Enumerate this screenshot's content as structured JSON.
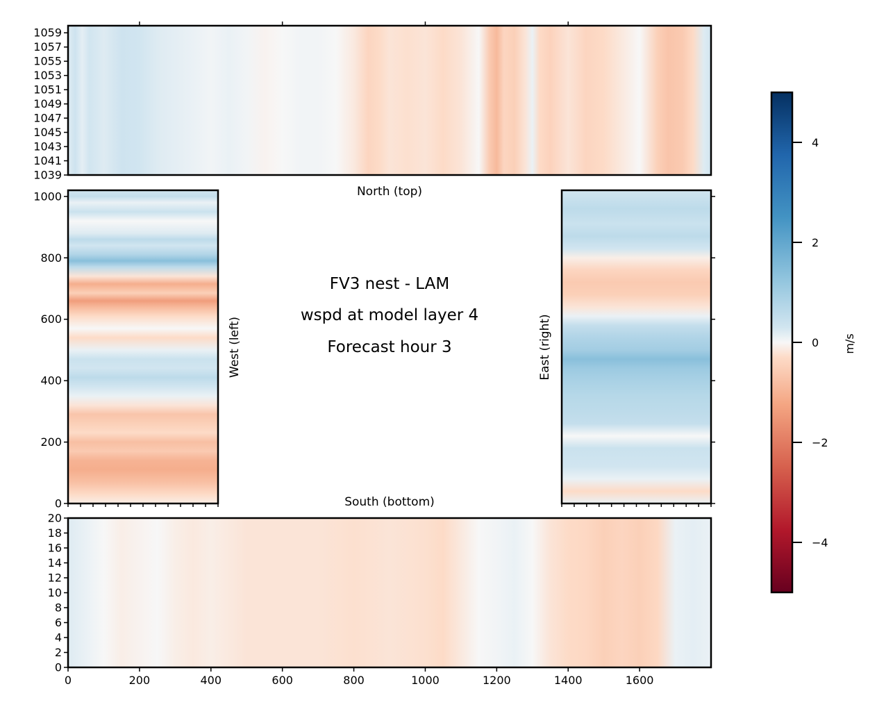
{
  "chart_data": {
    "type": "heatmap",
    "title_lines": [
      "FV3 nest - LAM",
      "wspd at model layer 4",
      "Forecast hour 3"
    ],
    "colormap": {
      "name": "RdBu",
      "range": [
        -5,
        5
      ],
      "ticks": [
        -4,
        -2,
        0,
        2,
        4
      ],
      "tick_labels": [
        "−4",
        "−2",
        "0",
        "2",
        "4"
      ],
      "label": "m/s",
      "stops": [
        {
          "v": -5,
          "c": "#67001f"
        },
        {
          "v": -3.75,
          "c": "#b2182b"
        },
        {
          "v": -2.5,
          "c": "#d6604d"
        },
        {
          "v": -1.25,
          "c": "#f4a582"
        },
        {
          "v": -0.3,
          "c": "#fddbc7"
        },
        {
          "v": 0,
          "c": "#f7f7f7"
        },
        {
          "v": 0.3,
          "c": "#d1e5f0"
        },
        {
          "v": 1.25,
          "c": "#92c5de"
        },
        {
          "v": 2.5,
          "c": "#4393c3"
        },
        {
          "v": 3.75,
          "c": "#2166ac"
        },
        {
          "v": 5,
          "c": "#053061"
        }
      ]
    },
    "panels": {
      "north": {
        "label": "North (top)",
        "xlim": [
          0,
          1800
        ],
        "ylim": [
          1039,
          1060
        ],
        "ytick_labels": [
          "1039",
          "1041",
          "1043",
          "1045",
          "1047",
          "1049",
          "1051",
          "1053",
          "1055",
          "1057",
          "1059"
        ],
        "profile": [
          [
            0,
            0.2
          ],
          [
            20,
            0.35
          ],
          [
            40,
            0.15
          ],
          [
            60,
            0.3
          ],
          [
            100,
            0.2
          ],
          [
            150,
            0.35
          ],
          [
            200,
            0.3
          ],
          [
            250,
            0.2
          ],
          [
            300,
            0.15
          ],
          [
            350,
            0.1
          ],
          [
            400,
            0.05
          ],
          [
            450,
            0.1
          ],
          [
            500,
            0.05
          ],
          [
            550,
            -0.05
          ],
          [
            600,
            0
          ],
          [
            650,
            0.05
          ],
          [
            700,
            0.05
          ],
          [
            750,
            0
          ],
          [
            800,
            -0.15
          ],
          [
            840,
            -0.4
          ],
          [
            870,
            -0.3
          ],
          [
            900,
            -0.2
          ],
          [
            950,
            -0.25
          ],
          [
            1000,
            -0.2
          ],
          [
            1050,
            -0.3
          ],
          [
            1100,
            -0.2
          ],
          [
            1150,
            0
          ],
          [
            1180,
            -0.6
          ],
          [
            1200,
            -0.9
          ],
          [
            1220,
            -0.4
          ],
          [
            1250,
            -0.5
          ],
          [
            1280,
            -0.2
          ],
          [
            1300,
            0.1
          ],
          [
            1320,
            -0.3
          ],
          [
            1350,
            -0.45
          ],
          [
            1400,
            -0.2
          ],
          [
            1450,
            -0.4
          ],
          [
            1500,
            -0.3
          ],
          [
            1550,
            -0.15
          ],
          [
            1600,
            0
          ],
          [
            1650,
            -0.5
          ],
          [
            1680,
            -0.7
          ],
          [
            1720,
            -0.6
          ],
          [
            1750,
            -0.3
          ],
          [
            1780,
            0.2
          ],
          [
            1800,
            0.3
          ]
        ]
      },
      "south": {
        "label": "South (bottom)",
        "xlim": [
          0,
          1800
        ],
        "ylim": [
          0,
          20
        ],
        "yticks": [
          0,
          2,
          4,
          6,
          8,
          10,
          12,
          14,
          16,
          18,
          20
        ],
        "ytick_labels": [
          "0",
          "2",
          "4",
          "6",
          "8",
          "10",
          "12",
          "14",
          "16",
          "18",
          "20"
        ],
        "xticks": [
          0,
          200,
          400,
          600,
          800,
          1000,
          1200,
          1400,
          1600
        ],
        "xtick_labels": [
          "0",
          "200",
          "400",
          "600",
          "800",
          "1000",
          "1200",
          "1400",
          "1600"
        ],
        "profile": [
          [
            0,
            0.2
          ],
          [
            50,
            0.1
          ],
          [
            100,
            0
          ],
          [
            150,
            -0.1
          ],
          [
            200,
            -0.05
          ],
          [
            250,
            0
          ],
          [
            300,
            -0.1
          ],
          [
            350,
            -0.15
          ],
          [
            400,
            -0.1
          ],
          [
            450,
            -0.15
          ],
          [
            500,
            -0.2
          ],
          [
            600,
            -0.2
          ],
          [
            700,
            -0.2
          ],
          [
            800,
            -0.25
          ],
          [
            900,
            -0.2
          ],
          [
            1000,
            -0.25
          ],
          [
            1050,
            -0.3
          ],
          [
            1100,
            -0.15
          ],
          [
            1150,
            0
          ],
          [
            1200,
            0.05
          ],
          [
            1250,
            0.1
          ],
          [
            1300,
            0
          ],
          [
            1350,
            -0.2
          ],
          [
            1400,
            -0.3
          ],
          [
            1450,
            -0.35
          ],
          [
            1500,
            -0.5
          ],
          [
            1550,
            -0.4
          ],
          [
            1600,
            -0.5
          ],
          [
            1650,
            -0.35
          ],
          [
            1700,
            0.1
          ],
          [
            1750,
            0.15
          ],
          [
            1800,
            0.1
          ]
        ]
      },
      "west": {
        "label": "West (left)",
        "xlim": [
          0,
          420
        ],
        "ylim": [
          0,
          1020
        ],
        "yticks": [
          0,
          200,
          400,
          600,
          800,
          1000
        ],
        "ytick_labels": [
          "0",
          "200",
          "400",
          "600",
          "800",
          "1000"
        ],
        "profile": [
          [
            0,
            -0.1
          ],
          [
            30,
            -0.3
          ],
          [
            70,
            -0.8
          ],
          [
            110,
            -1.1
          ],
          [
            140,
            -1.0
          ],
          [
            170,
            -0.6
          ],
          [
            200,
            -0.8
          ],
          [
            230,
            -0.3
          ],
          [
            260,
            -0.5
          ],
          [
            290,
            -0.7
          ],
          [
            320,
            -0.2
          ],
          [
            350,
            0.1
          ],
          [
            380,
            0.3
          ],
          [
            410,
            0.6
          ],
          [
            440,
            0.3
          ],
          [
            470,
            0.4
          ],
          [
            500,
            0.1
          ],
          [
            540,
            -0.3
          ],
          [
            570,
            0
          ],
          [
            610,
            -0.3
          ],
          [
            640,
            -0.9
          ],
          [
            660,
            -1.4
          ],
          [
            685,
            -0.5
          ],
          [
            715,
            -1.1
          ],
          [
            740,
            -0.2
          ],
          [
            770,
            0.6
          ],
          [
            790,
            1.4
          ],
          [
            810,
            0.8
          ],
          [
            840,
            0.3
          ],
          [
            860,
            0.6
          ],
          [
            880,
            0.2
          ],
          [
            920,
            0
          ],
          [
            950,
            0.4
          ],
          [
            980,
            0.1
          ],
          [
            1000,
            0.5
          ],
          [
            1020,
            0.3
          ]
        ]
      },
      "east": {
        "label": "East (right)",
        "xlim": [
          1380,
          1800
        ],
        "ylim": [
          0,
          1020
        ],
        "profile": [
          [
            0,
            0.1
          ],
          [
            40,
            -0.3
          ],
          [
            80,
            0.1
          ],
          [
            120,
            0.3
          ],
          [
            180,
            0.4
          ],
          [
            220,
            0
          ],
          [
            260,
            0.5
          ],
          [
            300,
            0.6
          ],
          [
            350,
            0.7
          ],
          [
            400,
            0.9
          ],
          [
            440,
            1.1
          ],
          [
            470,
            1.4
          ],
          [
            500,
            1.0
          ],
          [
            540,
            0.8
          ],
          [
            580,
            0.5
          ],
          [
            610,
            0.1
          ],
          [
            640,
            -0.2
          ],
          [
            680,
            -0.5
          ],
          [
            720,
            -0.6
          ],
          [
            760,
            -0.4
          ],
          [
            800,
            -0.1
          ],
          [
            830,
            0.3
          ],
          [
            870,
            0.6
          ],
          [
            910,
            0.4
          ],
          [
            960,
            0.6
          ],
          [
            1020,
            0.3
          ]
        ]
      }
    }
  }
}
